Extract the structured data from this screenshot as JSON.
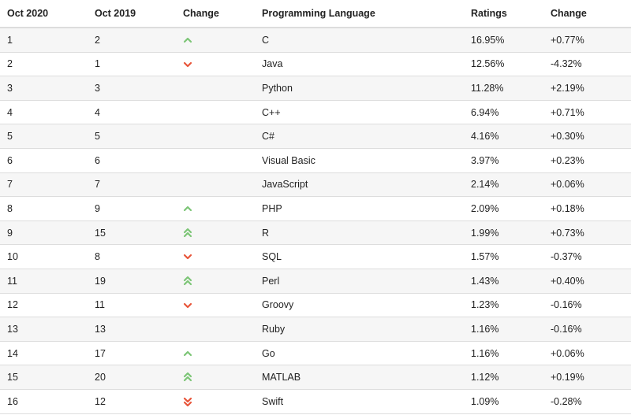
{
  "headers": {
    "rank_current": "Oct 2020",
    "rank_previous": "Oct 2019",
    "change": "Change",
    "language": "Programming Language",
    "ratings": "Ratings",
    "ratings_change": "Change"
  },
  "colors": {
    "up": "#7cc576",
    "down": "#e8553a"
  },
  "rows": [
    {
      "current": "1",
      "previous": "2",
      "trend": "up",
      "language": "C",
      "rating": "16.95%",
      "delta": "+0.77%"
    },
    {
      "current": "2",
      "previous": "1",
      "trend": "down",
      "language": "Java",
      "rating": "12.56%",
      "delta": "-4.32%"
    },
    {
      "current": "3",
      "previous": "3",
      "trend": "none",
      "language": "Python",
      "rating": "11.28%",
      "delta": "+2.19%"
    },
    {
      "current": "4",
      "previous": "4",
      "trend": "none",
      "language": "C++",
      "rating": "6.94%",
      "delta": "+0.71%"
    },
    {
      "current": "5",
      "previous": "5",
      "trend": "none",
      "language": "C#",
      "rating": "4.16%",
      "delta": "+0.30%"
    },
    {
      "current": "6",
      "previous": "6",
      "trend": "none",
      "language": "Visual Basic",
      "rating": "3.97%",
      "delta": "+0.23%"
    },
    {
      "current": "7",
      "previous": "7",
      "trend": "none",
      "language": "JavaScript",
      "rating": "2.14%",
      "delta": "+0.06%"
    },
    {
      "current": "8",
      "previous": "9",
      "trend": "up",
      "language": "PHP",
      "rating": "2.09%",
      "delta": "+0.18%"
    },
    {
      "current": "9",
      "previous": "15",
      "trend": "double-up",
      "language": "R",
      "rating": "1.99%",
      "delta": "+0.73%"
    },
    {
      "current": "10",
      "previous": "8",
      "trend": "down",
      "language": "SQL",
      "rating": "1.57%",
      "delta": "-0.37%"
    },
    {
      "current": "11",
      "previous": "19",
      "trend": "double-up",
      "language": "Perl",
      "rating": "1.43%",
      "delta": "+0.40%"
    },
    {
      "current": "12",
      "previous": "11",
      "trend": "down",
      "language": "Groovy",
      "rating": "1.23%",
      "delta": "-0.16%"
    },
    {
      "current": "13",
      "previous": "13",
      "trend": "none",
      "language": "Ruby",
      "rating": "1.16%",
      "delta": "-0.16%"
    },
    {
      "current": "14",
      "previous": "17",
      "trend": "up",
      "language": "Go",
      "rating": "1.16%",
      "delta": "+0.06%"
    },
    {
      "current": "15",
      "previous": "20",
      "trend": "double-up",
      "language": "MATLAB",
      "rating": "1.12%",
      "delta": "+0.19%"
    },
    {
      "current": "16",
      "previous": "12",
      "trend": "double-down",
      "language": "Swift",
      "rating": "1.09%",
      "delta": "-0.28%"
    }
  ]
}
